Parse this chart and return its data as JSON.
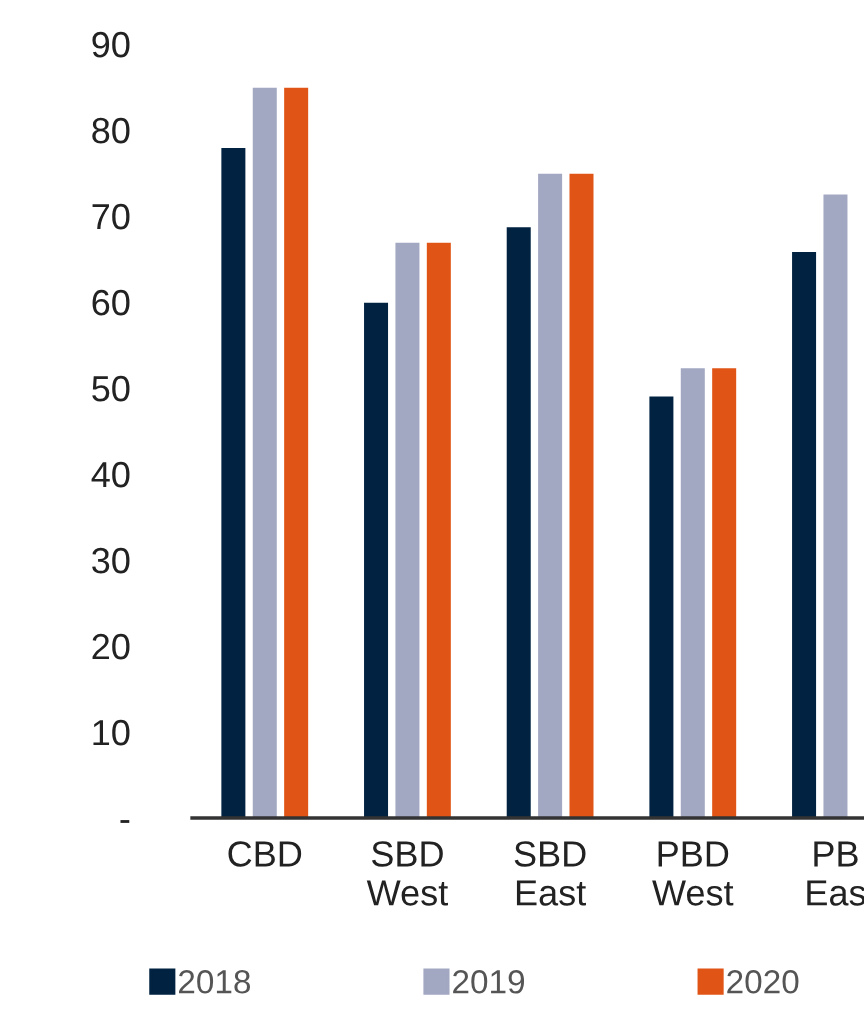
{
  "chart_data": {
    "type": "bar",
    "categories": [
      "CBD",
      "SBD\nWest",
      "SBD\nEast",
      "PBD\nWest",
      "PB\nEas"
    ],
    "series": [
      {
        "name": "2018",
        "color": "#012240",
        "values": [
          78,
          60,
          68.8,
          49.1,
          65.9
        ]
      },
      {
        "name": "2019",
        "color": "#a2a7c2",
        "values": [
          85,
          67,
          75,
          52.4,
          72.6
        ]
      },
      {
        "name": "2020",
        "color": "#e05516",
        "values": [
          85,
          67,
          75,
          52.4,
          null
        ]
      }
    ],
    "ylim": [
      0,
      90
    ],
    "yticks": [
      {
        "value": 0,
        "label": "-"
      },
      10,
      20,
      30,
      40,
      50,
      60,
      70,
      80,
      90
    ],
    "grid": false,
    "legend": "bottom"
  }
}
